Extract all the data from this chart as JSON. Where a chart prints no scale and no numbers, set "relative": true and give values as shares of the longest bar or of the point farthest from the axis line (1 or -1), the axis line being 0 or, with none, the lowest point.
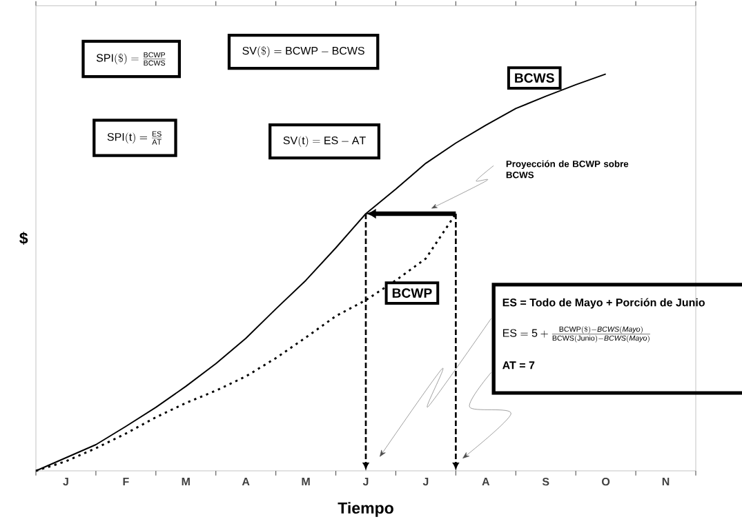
{
  "chart_data": {
    "type": "line",
    "relative": true,
    "xlabel": "Tiempo",
    "ylabel": "$",
    "categories": [
      null,
      "J",
      null,
      "F",
      null,
      "M",
      null,
      "A",
      null,
      "M",
      null,
      "J",
      null,
      "J",
      null,
      "A",
      null,
      "S",
      null,
      "O",
      null,
      "N",
      null
    ],
    "marker": "none",
    "series": [
      {
        "name": "BCWS",
        "color": "#000000",
        "line_style": "solid",
        "values": [
          0,
          0.033,
          0.066,
          0.112,
          0.16,
          0.213,
          0.27,
          0.334,
          0.408,
          0.48,
          0.562,
          0.648,
          0.71,
          0.775,
          0.826,
          0.871,
          0.913,
          0.944,
          0.973,
          1.0,
          null,
          null,
          null
        ]
      },
      {
        "name": "BCWP",
        "color": "#000000",
        "line_style": "dotted",
        "values": [
          0,
          0.024,
          0.057,
          0.094,
          0.135,
          0.171,
          0.202,
          0.238,
          0.284,
          0.336,
          0.39,
          0.43,
          0.48,
          0.535,
          0.648,
          null,
          null,
          null,
          null,
          null,
          null,
          null,
          null
        ]
      }
    ],
    "annotations": [
      "\\mathrm{SPI(\\$)=\\frac{BCWP}{BCWS}}",
      "\\mathrm{SV(\\$)=BCWP-BCWS}",
      "\\mathrm{SPI(t)=\\frac{ES}{AT}}",
      "\\mathrm{SV(t)=ES-AT}",
      "Proyección de BCWP sobre BCWS",
      "ES = Todo de Mayo + Porción de Junio",
      "\\mathrm{ES = 5 + \\frac{BCWP(\\$)-\\mathit{BCWS(Mayo)}}{BCWS(Junio)-\\mathit{BCWS(Mayo)}}}",
      "AT = 7"
    ]
  }
}
